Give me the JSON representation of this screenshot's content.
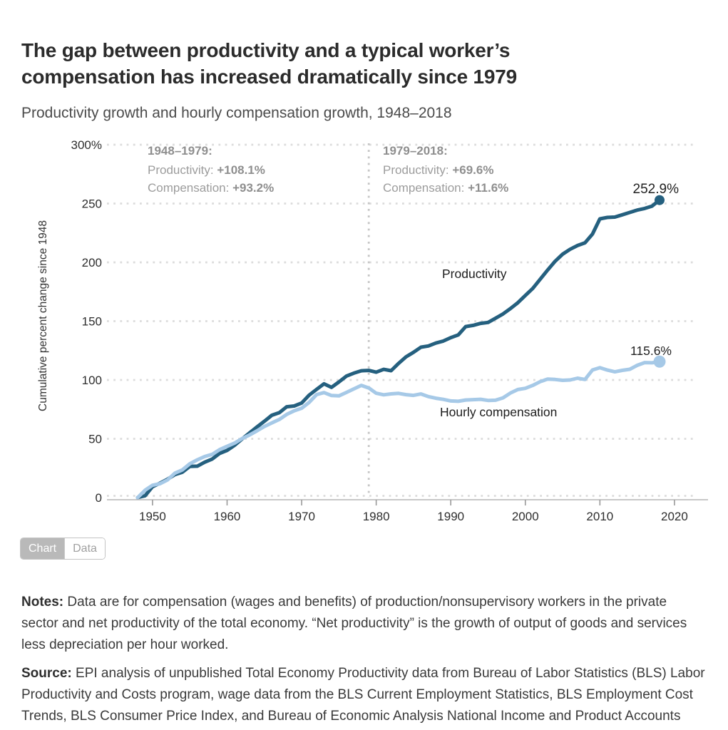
{
  "header": {
    "title_line1": "The gap between productivity and a typical worker’s",
    "title_line2": "compensation has increased dramatically since 1979",
    "subtitle": "Productivity growth and hourly compensation growth, 1948–2018"
  },
  "chart_data": {
    "type": "line",
    "ylabel": "Cumulative percent change since 1948",
    "ylim": [
      0,
      300
    ],
    "xlim": [
      1948,
      2020
    ],
    "grid": "dotted-horizontal",
    "legend_position": "inline-labels",
    "divider_year": 1979,
    "yticks": [
      {
        "value": 300,
        "label": "300%"
      },
      {
        "value": 250,
        "label": "250"
      },
      {
        "value": 200,
        "label": "200"
      },
      {
        "value": 150,
        "label": "150"
      },
      {
        "value": 100,
        "label": "100"
      },
      {
        "value": 50,
        "label": "50"
      },
      {
        "value": 0,
        "label": "0"
      }
    ],
    "xticks": [
      {
        "year": 1950,
        "label": "1950"
      },
      {
        "year": 1960,
        "label": "1960"
      },
      {
        "year": 1970,
        "label": "1970"
      },
      {
        "year": 1980,
        "label": "1980"
      },
      {
        "year": 1990,
        "label": "1990"
      },
      {
        "year": 2000,
        "label": "2000"
      },
      {
        "year": 2010,
        "label": "2010"
      },
      {
        "year": 2020,
        "label": "2020"
      }
    ],
    "x_start_year": 1948,
    "annotations": [
      {
        "heading": "1948–1979:",
        "lines": [
          {
            "label": "Productivity: ",
            "value": "+108.1%"
          },
          {
            "label": "Compensation: ",
            "value": "+93.2%"
          }
        ]
      },
      {
        "heading": "1979–2018:",
        "lines": [
          {
            "label": "Productivity: ",
            "value": "+69.6%"
          },
          {
            "label": "Compensation: ",
            "value": "+11.6%"
          }
        ]
      }
    ],
    "series": [
      {
        "name": "Productivity",
        "label": "Productivity",
        "color": "#25607f",
        "end_label": "252.9%",
        "end_value": 252.9,
        "values": [
          0.0,
          1.6,
          9.3,
          12.3,
          15.6,
          19.5,
          21.6,
          26.5,
          26.7,
          30.1,
          32.8,
          37.6,
          40.1,
          44.4,
          49.8,
          55.0,
          60.0,
          64.9,
          70.0,
          72.2,
          77.2,
          77.9,
          80.4,
          87.1,
          92.0,
          96.7,
          93.7,
          98.3,
          103.3,
          105.8,
          107.8,
          108.1,
          106.6,
          109.0,
          107.9,
          114.1,
          119.7,
          123.5,
          127.9,
          128.9,
          131.4,
          133.1,
          136.0,
          138.3,
          145.4,
          146.4,
          148.1,
          148.9,
          152.5,
          156.1,
          160.7,
          165.7,
          171.9,
          177.8,
          185.7,
          193.5,
          201.0,
          207.0,
          211.1,
          214.3,
          216.6,
          224.0,
          237.0,
          238.2,
          238.5,
          240.4,
          242.4,
          244.4,
          245.8,
          247.8,
          252.9
        ]
      },
      {
        "name": "Hourly compensation",
        "label": "Hourly compensation",
        "color": "#a6c9e7",
        "end_label": "115.6%",
        "end_value": 115.6,
        "values": [
          0.0,
          6.3,
          10.5,
          11.8,
          15.0,
          20.8,
          23.5,
          28.7,
          32.1,
          34.9,
          36.8,
          40.8,
          43.6,
          46.3,
          50.2,
          53.2,
          56.7,
          60.5,
          63.5,
          66.4,
          70.7,
          73.8,
          76.0,
          80.9,
          87.6,
          89.3,
          86.8,
          86.5,
          89.4,
          92.4,
          95.4,
          93.2,
          88.7,
          87.4,
          88.2,
          88.6,
          87.5,
          86.9,
          88.1,
          85.9,
          84.5,
          83.5,
          82.2,
          81.9,
          83.0,
          83.3,
          83.6,
          82.6,
          82.8,
          84.8,
          88.9,
          91.9,
          92.9,
          95.4,
          98.6,
          100.8,
          100.4,
          99.7,
          100.0,
          101.5,
          100.4,
          108.5,
          110.5,
          108.4,
          106.9,
          108.2,
          109.1,
          112.4,
          114.8,
          114.6,
          115.6
        ]
      }
    ]
  },
  "toggle": {
    "chart_label": "Chart",
    "data_label": "Data"
  },
  "notes": {
    "label": "Notes:",
    "text": " Data are for compensation (wages and benefits) of production/nonsupervisory workers in the private sector and net productivity of the total economy. “Net productivity” is the growth of output of goods and services less depreciation per hour worked."
  },
  "source": {
    "label": "Source:",
    "text": " EPI analysis of unpublished Total Economy Productivity data from Bureau of Labor Statistics (BLS) Labor Productivity and Costs program, wage data from the BLS Current Employment Statistics, BLS Employment Cost Trends, BLS Consumer Price Index, and Bureau of Economic Analysis National Income and Product Accounts"
  }
}
